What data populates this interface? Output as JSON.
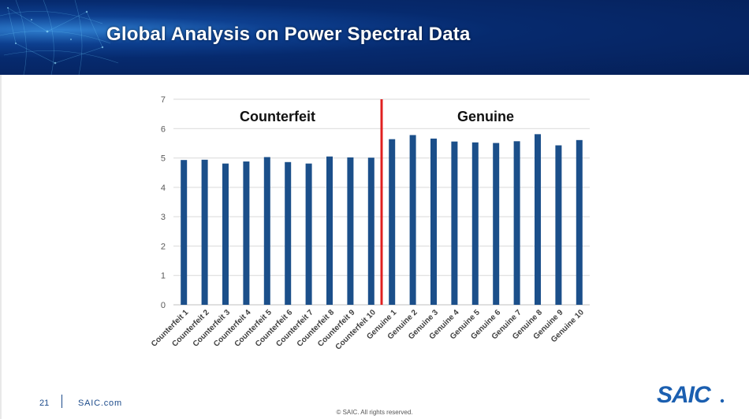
{
  "slide": {
    "title": "Global Analysis on Power Spectral Data",
    "page_number": "21",
    "site": "SAIC.com",
    "copyright": "© SAIC. All rights reserved.",
    "logo_text": "SAIC."
  },
  "colors": {
    "bar": "#1b4f8a",
    "divider": "#e02020",
    "header": "#062a6e",
    "logo": "#1b5fb0"
  },
  "chart_data": {
    "type": "bar",
    "categories": [
      "Counterfeit 1",
      "Counterfeit 2",
      "Counterfeit 3",
      "Counterfeit 4",
      "Counterfeit 5",
      "Counterfeit 6",
      "Counterfeit 7",
      "Counterfeit 8",
      "Counterfeit 9",
      "Counterfeit 10",
      "Genuine 1",
      "Genuine 2",
      "Genuine 3",
      "Genuine 4",
      "Genuine 5",
      "Genuine 6",
      "Genuine 7",
      "Genuine 8",
      "Genuine 9",
      "Genuine 10"
    ],
    "values": [
      4.93,
      4.94,
      4.81,
      4.88,
      5.03,
      4.86,
      4.81,
      5.05,
      5.02,
      5.01,
      5.64,
      5.78,
      5.66,
      5.56,
      5.53,
      5.51,
      5.57,
      5.81,
      5.43,
      5.61
    ],
    "ylim": [
      0,
      7
    ],
    "yticks": [
      0,
      1,
      2,
      3,
      4,
      5,
      6,
      7
    ],
    "grid": true,
    "annotations": [
      {
        "text": "Counterfeit",
        "group": "counterfeit"
      },
      {
        "text": "Genuine",
        "group": "genuine"
      }
    ],
    "divider_after_index": 9
  }
}
